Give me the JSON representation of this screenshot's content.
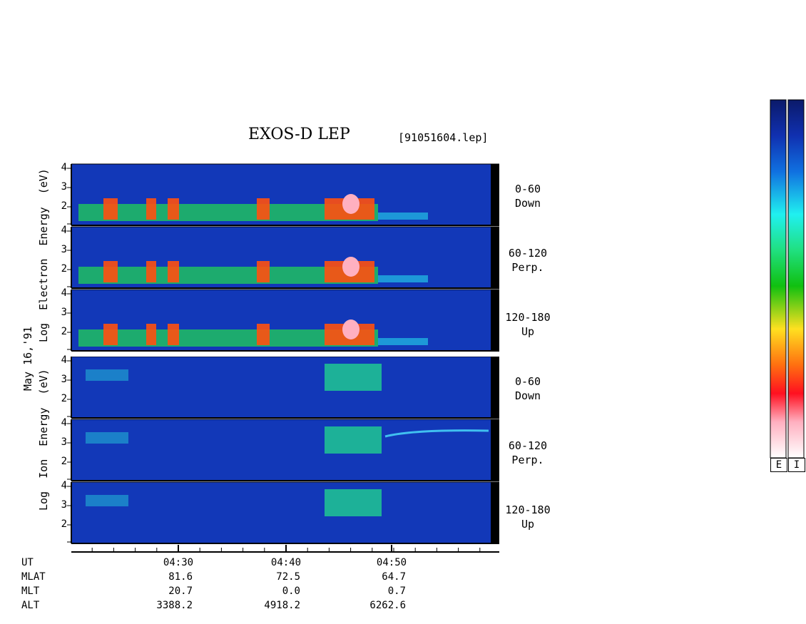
{
  "header": {
    "title": "EXOS-D LEP",
    "file": "[91051604.lep]"
  },
  "side_labels": {
    "date": "May 16,'91",
    "electron_axis": [
      "Log",
      "Electron",
      "Energy",
      "(eV)"
    ],
    "ion_axis": [
      "Log",
      "Ion",
      "Energy",
      "(eV)"
    ]
  },
  "colorbar": {
    "labels": [
      "E",
      "I"
    ]
  },
  "chart_data": {
    "type": "heatmap",
    "title": "EXOS-D LEP",
    "x_axis": {
      "ticks": [
        "04:30",
        "04:40",
        "04:50"
      ],
      "minor_ticks_per_major": 5
    },
    "y_ticks": [
      "4",
      "3",
      "2"
    ],
    "panels": [
      {
        "species": "Electron",
        "pitch_angle": "0-60",
        "direction": "Down"
      },
      {
        "species": "Electron",
        "pitch_angle": "60-120",
        "direction": "Perp."
      },
      {
        "species": "Electron",
        "pitch_angle": "120-180",
        "direction": "Up"
      },
      {
        "species": "Ion",
        "pitch_angle": "0-60",
        "direction": "Down"
      },
      {
        "species": "Ion",
        "pitch_angle": "60-120",
        "direction": "Perp."
      },
      {
        "species": "Ion",
        "pitch_angle": "120-180",
        "direction": "Up"
      }
    ],
    "colorscale": [
      "#0b1f6e",
      "#1060e0",
      "#20d8f0",
      "#20e060",
      "#f0e020",
      "#ff6010",
      "#ff2030",
      "#ffd8e0"
    ],
    "ephemeris": {
      "rows": [
        {
          "label": "UT",
          "values": [
            "04:30",
            "04:40",
            "04:50"
          ]
        },
        {
          "label": "MLAT",
          "values": [
            "81.6",
            "72.5",
            "64.7"
          ]
        },
        {
          "label": "MLT",
          "values": [
            "20.7",
            "0.0",
            "0.7"
          ]
        },
        {
          "label": "ALT",
          "values": [
            "3388.2",
            "4918.2",
            "6262.6"
          ]
        }
      ]
    }
  }
}
